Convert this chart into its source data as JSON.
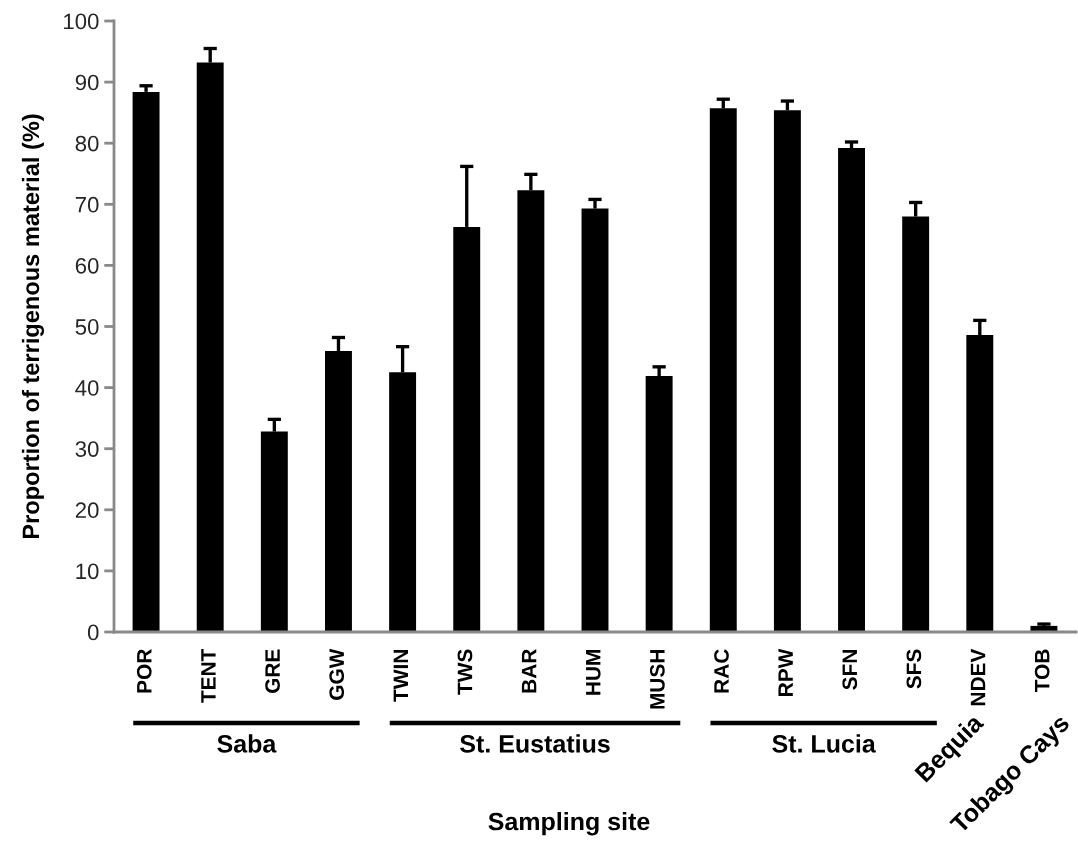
{
  "chart_data": {
    "type": "bar",
    "xlabel": "Sampling site",
    "ylabel": "Proportion of terrigenous material (%)",
    "categories": [
      "POR",
      "TENT",
      "GRE",
      "GGW",
      "TWIN",
      "TWS",
      "BAR",
      "HUM",
      "MUSH",
      "RAC",
      "RPW",
      "SFN",
      "SFS",
      "NDEV",
      "TOB"
    ],
    "values": [
      88.4,
      93.2,
      32.8,
      46.0,
      42.5,
      66.3,
      72.3,
      69.3,
      41.9,
      85.7,
      85.4,
      79.2,
      68.0,
      48.6,
      1.0
    ],
    "errors": [
      [
        88.4,
        89.4
      ],
      [
        93.2,
        95.5
      ],
      [
        32.8,
        34.8
      ],
      [
        46.0,
        48.2
      ],
      [
        42.5,
        46.7
      ],
      [
        66.3,
        76.2
      ],
      [
        72.3,
        74.9
      ],
      [
        69.3,
        70.8
      ],
      [
        41.9,
        43.4
      ],
      [
        85.7,
        87.2
      ],
      [
        85.4,
        86.9
      ],
      [
        79.2,
        80.2
      ],
      [
        68.0,
        70.3
      ],
      [
        48.6,
        51.0
      ],
      [
        1.0,
        1.3
      ]
    ],
    "color": "#000000",
    "ylim": [
      0,
      100
    ],
    "yticks": [
      0,
      10,
      20,
      30,
      40,
      50,
      60,
      70,
      80,
      90,
      100
    ],
    "grid": false,
    "annotations": [
      "Saba",
      "St. Eustatius",
      "St. Lucia",
      "Bequia",
      "Tobago Cays"
    ]
  }
}
